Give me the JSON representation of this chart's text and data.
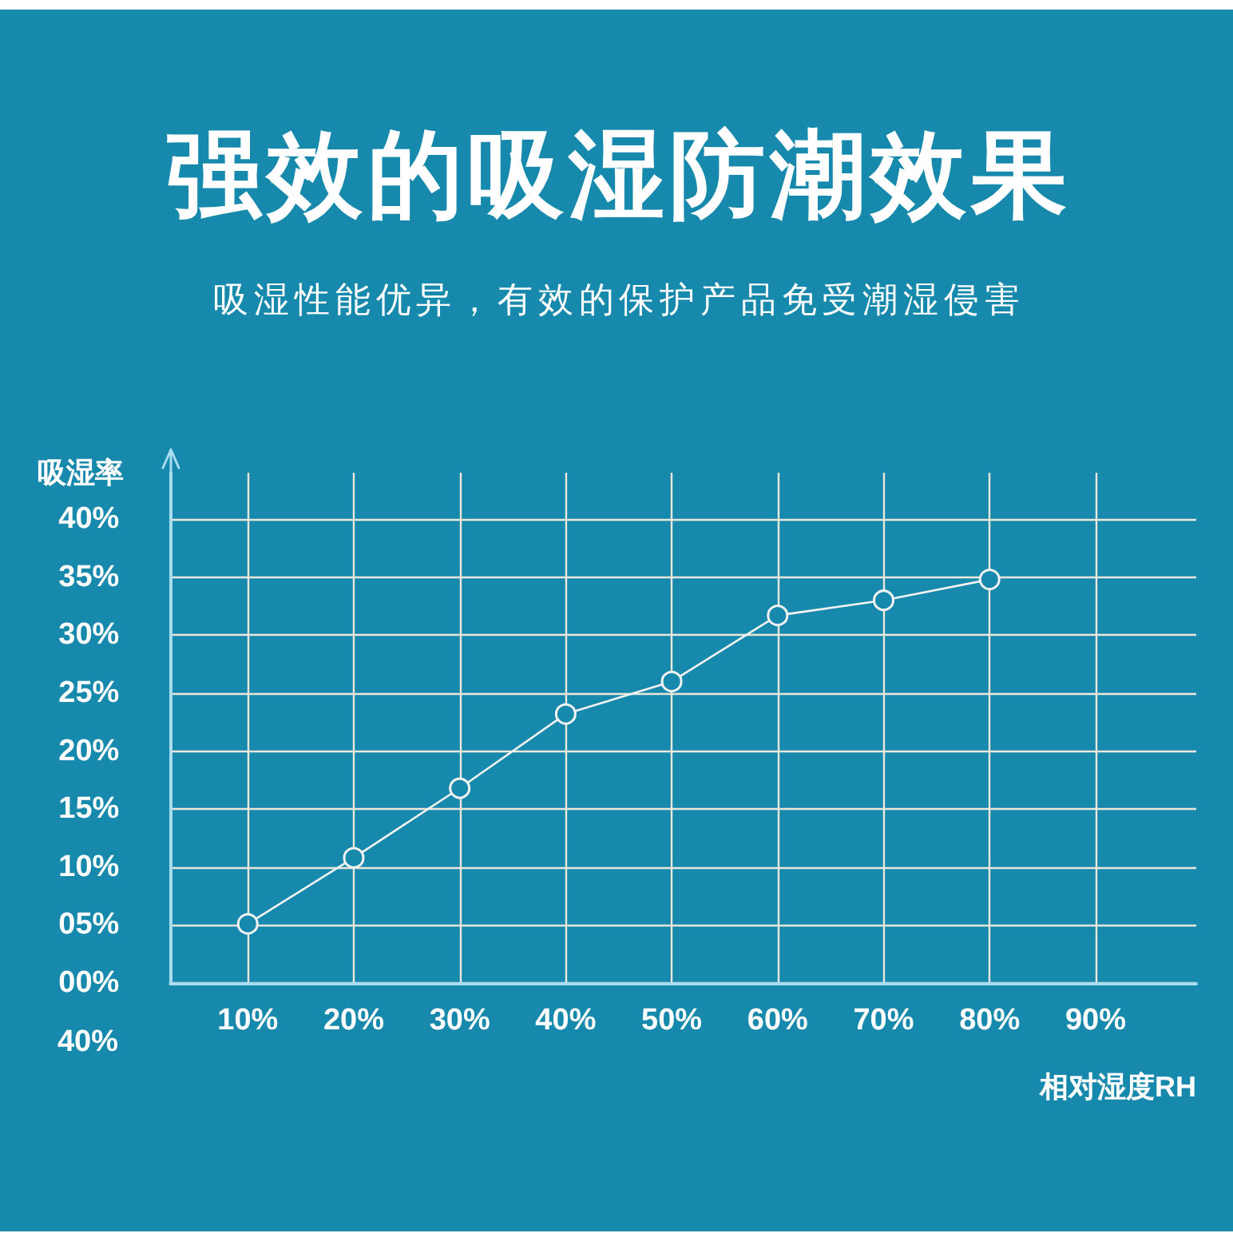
{
  "chart_data": {
    "type": "line",
    "title": "强效的吸湿防潮效果",
    "subtitle": "吸湿性能优异，有效的保护产品免受潮湿侵害",
    "xlabel": "相对湿度RH",
    "ylabel": "吸湿率",
    "x": [
      10,
      20,
      30,
      40,
      50,
      60,
      70,
      80
    ],
    "values": [
      5.1,
      10.8,
      16.8,
      23.2,
      26,
      31.7,
      33,
      34.8
    ],
    "color": "#f2f2f2",
    "xlim": [
      2.7,
      99.5
    ],
    "xticks": [
      {
        "value": 10,
        "label": "10%"
      },
      {
        "value": 20,
        "label": "20%"
      },
      {
        "value": 30,
        "label": "30%"
      },
      {
        "value": 40,
        "label": "40%"
      },
      {
        "value": 50,
        "label": "50%"
      },
      {
        "value": 60,
        "label": "60%"
      },
      {
        "value": 70,
        "label": "70%"
      },
      {
        "value": 80,
        "label": "80%"
      },
      {
        "value": 90,
        "label": "90%"
      }
    ],
    "ylim": [
      0,
      44
    ],
    "yticks": [
      {
        "value": 0,
        "label": "00%"
      },
      {
        "value": 5,
        "label": "05%"
      },
      {
        "value": 10,
        "label": "10%"
      },
      {
        "value": 15,
        "label": "15%"
      },
      {
        "value": 20,
        "label": "20%"
      },
      {
        "value": 25,
        "label": "25%"
      },
      {
        "value": 30,
        "label": "30%"
      },
      {
        "value": 35,
        "label": "35%"
      },
      {
        "value": 40,
        "label": "40%"
      }
    ],
    "grid": true,
    "marker": "circle",
    "line_style": "solid",
    "annotations": [
      "40%"
    ]
  }
}
